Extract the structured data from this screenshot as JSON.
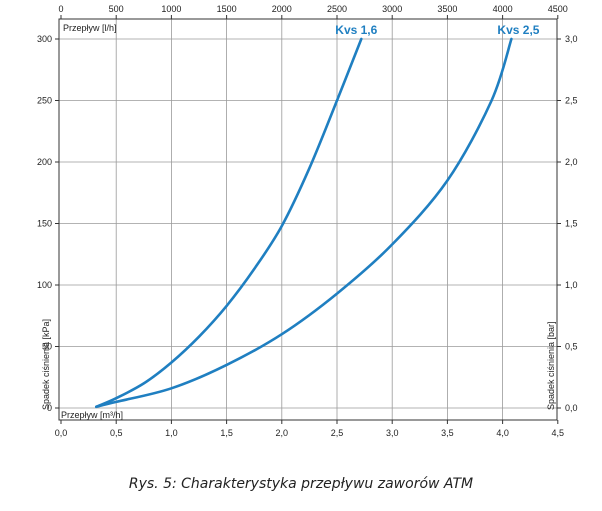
{
  "caption": "Rys. 5: Charakterystyka przepływu zaworów ATM",
  "chart_data": {
    "type": "line",
    "title": "Rys. 5: Charakterystyka przepływu zaworów ATM",
    "x_top": {
      "label": "Przepływ [l/h]",
      "range": [
        0,
        4500
      ],
      "ticks": [
        0,
        500,
        1000,
        1500,
        2000,
        2500,
        3000,
        3500,
        4000,
        4500
      ]
    },
    "x_bottom": {
      "label": "Przepływ [m³/h]",
      "range": [
        0,
        4.5
      ],
      "ticks": [
        "0,0",
        "0,5",
        "1,0",
        "1,5",
        "2,0",
        "2,5",
        "3,0",
        "3,5",
        "4,0",
        "4,5"
      ]
    },
    "y_left": {
      "label": "Spadek ciśnienia [kPa]",
      "range": [
        0,
        300
      ],
      "ticks": [
        "0",
        "50",
        "100",
        "150",
        "200",
        "250",
        "300"
      ]
    },
    "y_right": {
      "label": "Spadek ciśnienia [bar]",
      "range": [
        0,
        3
      ],
      "ticks": [
        "0,0",
        "0,5",
        "1,0",
        "1,5",
        "2,0",
        "2,5",
        "3,0"
      ]
    },
    "grid": true,
    "color": "#1f7fc1",
    "series": [
      {
        "name": "Kvs 1,6",
        "x": [
          0.32,
          0.5,
          0.75,
          1.0,
          1.25,
          1.5,
          1.75,
          2.0,
          2.25,
          2.5,
          2.72
        ],
        "y": [
          1,
          8,
          20,
          37,
          58,
          83,
          113,
          148,
          195,
          250,
          300
        ]
      },
      {
        "name": "Kvs 2,5",
        "x": [
          0.32,
          0.5,
          1.0,
          1.5,
          2.0,
          2.5,
          3.0,
          3.5,
          3.9,
          4.08
        ],
        "y": [
          1,
          5,
          16,
          35,
          60,
          93,
          133,
          185,
          250,
          300
        ]
      }
    ]
  }
}
